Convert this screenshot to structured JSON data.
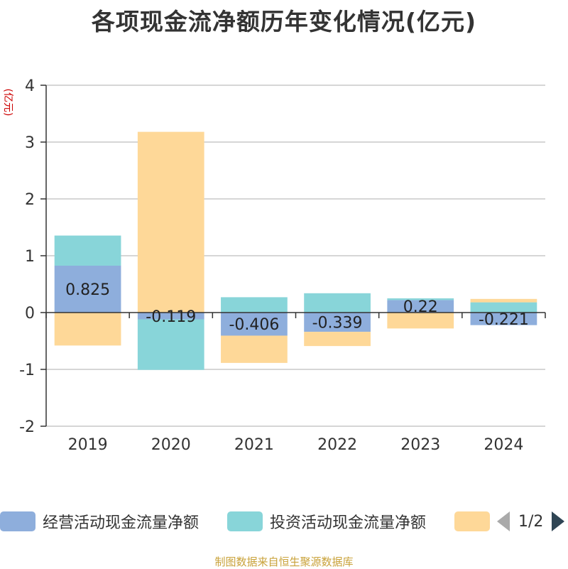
{
  "chart_data": {
    "type": "bar",
    "stacked": true,
    "title": "各项现金流净额历年变化情况(亿元)",
    "ylabel": "(亿元)",
    "ylim": [
      -2,
      4
    ],
    "yticks": [
      4,
      3,
      2,
      1,
      0,
      -1,
      -2
    ],
    "categories": [
      "2019",
      "2020",
      "2021",
      "2022",
      "2023",
      "2024"
    ],
    "series": [
      {
        "name": "经营活动现金流量净额",
        "color": "#8eaedc",
        "values": [
          0.825,
          -0.119,
          -0.406,
          -0.339,
          0.22,
          -0.221
        ],
        "labels": [
          "0.825",
          "-0.119",
          "-0.406",
          "-0.339",
          "0.22",
          "-0.221"
        ]
      },
      {
        "name": "投资活动现金流量净额",
        "color": "#88d5d9",
        "values": [
          0.53,
          -0.89,
          0.27,
          0.34,
          0.03,
          0.18
        ]
      },
      {
        "name": "",
        "color": "#fed898",
        "values": [
          -0.58,
          3.18,
          -0.48,
          -0.25,
          -0.28,
          0.06
        ]
      }
    ],
    "grid": true,
    "legend_position": "bottom"
  },
  "legend": {
    "page": "1/2"
  },
  "source": "制图数据来自恒生聚源数据库"
}
